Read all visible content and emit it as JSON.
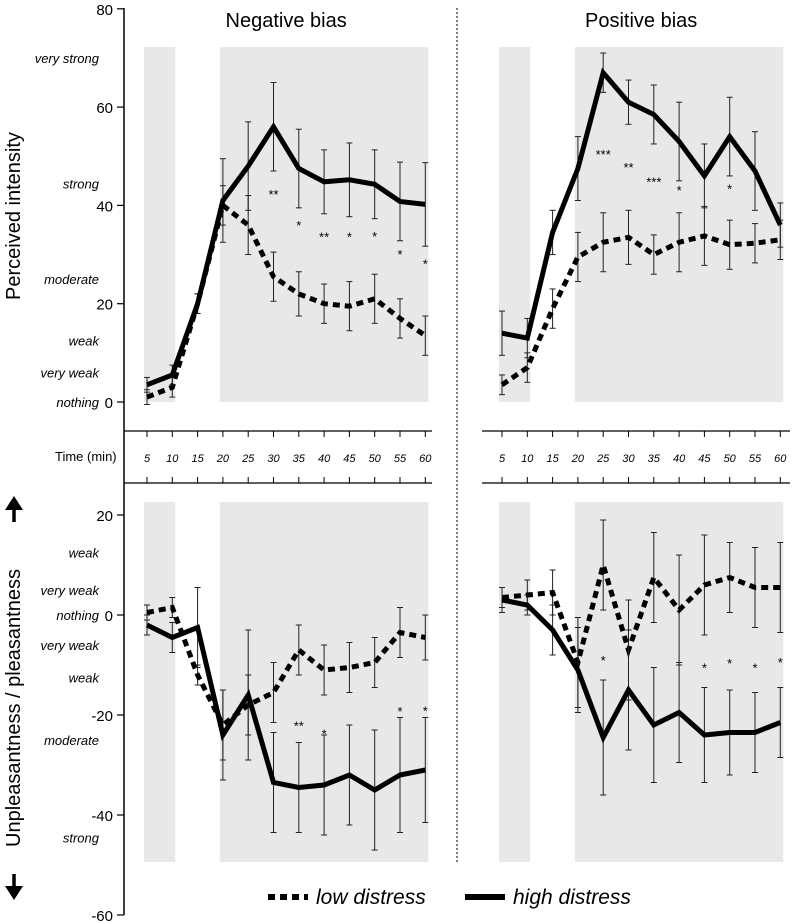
{
  "time_axis_label": "Time (min)",
  "time_ticks": [
    "5",
    "10",
    "15",
    "20",
    "25",
    "30",
    "35",
    "40",
    "45",
    "50",
    "55",
    "60"
  ],
  "ylabel_top": "Perceived intensity",
  "ylabel_bottom": "Unpleasantness / pleasantness",
  "legend": {
    "low": "low distress",
    "high": "high distress"
  },
  "top_y_ticks": [
    "0",
    "20",
    "40",
    "60",
    "80"
  ],
  "bottom_y_ticks": [
    "20",
    "0",
    "-20",
    "-40",
    "-60"
  ],
  "top_descriptors": [
    {
      "text": "very strong",
      "value": 70
    },
    {
      "text": "strong",
      "value": 44.5
    },
    {
      "text": "moderate",
      "value": 25
    },
    {
      "text": "weak",
      "value": 12.5
    },
    {
      "text": "very weak",
      "value": 6
    },
    {
      "text": "nothing",
      "value": 0
    }
  ],
  "bottom_descriptors": [
    {
      "text": "weak",
      "value": 12.5
    },
    {
      "text": "very weak",
      "value": 5
    },
    {
      "text": "nothing",
      "value": 0
    },
    {
      "text": "very weak",
      "value": -6
    },
    {
      "text": "weak",
      "value": -12.5
    },
    {
      "text": "moderate",
      "value": -25
    },
    {
      "text": "strong",
      "value": -44.5
    }
  ],
  "colors": {
    "line": "#000000",
    "shade": "#e8e8e8",
    "text": "#000000"
  },
  "chart_data": [
    {
      "type": "line",
      "panel": "top-left",
      "title": "Negative bias",
      "xlabel": "Time (min)",
      "ylabel": "Perceived intensity",
      "ylim": [
        0,
        80
      ],
      "x": [
        5,
        10,
        15,
        20,
        25,
        30,
        35,
        40,
        45,
        50,
        55,
        60
      ],
      "shaded_ranges": [
        [
          5,
          10
        ],
        [
          20,
          60
        ]
      ],
      "series": [
        {
          "name": "low distress",
          "style": "dotted",
          "values": [
            1,
            3,
            20,
            40,
            36,
            25.5,
            22,
            20,
            19.5,
            21,
            17,
            13.5
          ],
          "errors": [
            1.5,
            2,
            2,
            4,
            6,
            5,
            4.5,
            4,
            5,
            5,
            4,
            4
          ]
        },
        {
          "name": "high distress",
          "style": "solid",
          "values": [
            3.5,
            5.5,
            20,
            41,
            48,
            56,
            47.5,
            44.8,
            45.2,
            44.3,
            40.8,
            40.2
          ],
          "errors": [
            1.5,
            2,
            2,
            8.5,
            9,
            9,
            8,
            6.5,
            7.5,
            7,
            8,
            8.5
          ]
        }
      ],
      "significance": [
        {
          "x": 30,
          "label": "**"
        },
        {
          "x": 35,
          "label": "*"
        },
        {
          "x": 40,
          "label": "**"
        },
        {
          "x": 45,
          "label": "*"
        },
        {
          "x": 50,
          "label": "*"
        },
        {
          "x": 55,
          "label": "*"
        },
        {
          "x": 60,
          "label": "*"
        }
      ]
    },
    {
      "type": "line",
      "panel": "top-right",
      "title": "Positive bias",
      "xlabel": "Time (min)",
      "ylabel": "Perceived intensity",
      "ylim": [
        0,
        80
      ],
      "x": [
        5,
        10,
        15,
        20,
        25,
        30,
        35,
        40,
        45,
        50,
        55,
        60
      ],
      "shaded_ranges": [
        [
          5,
          10
        ],
        [
          20,
          60
        ]
      ],
      "series": [
        {
          "name": "low distress",
          "style": "dotted",
          "values": [
            3.5,
            7,
            19,
            29.5,
            32.5,
            33.5,
            30,
            32.5,
            33.8,
            32,
            32.3,
            33
          ],
          "errors": [
            2,
            3,
            4,
            5,
            6,
            5.5,
            4,
            6,
            6,
            5,
            4,
            4
          ]
        },
        {
          "name": "high distress",
          "style": "solid",
          "values": [
            14,
            13,
            34.5,
            47.5,
            67,
            61,
            58.5,
            53,
            46,
            54,
            47,
            36
          ],
          "errors": [
            4.5,
            4,
            4.5,
            6.5,
            4,
            4.5,
            6,
            8,
            6.5,
            8,
            8,
            4.5
          ]
        }
      ],
      "significance": [
        {
          "x": 25,
          "label": "***"
        },
        {
          "x": 30,
          "label": "**"
        },
        {
          "x": 35,
          "label": "***"
        },
        {
          "x": 40,
          "label": "*"
        },
        {
          "x": 50,
          "label": "*"
        }
      ]
    },
    {
      "type": "line",
      "panel": "bottom-left",
      "title": "",
      "xlabel": "Time (min)",
      "ylabel": "Unpleasantness / pleasantness",
      "ylim": [
        -60,
        25
      ],
      "x": [
        5,
        10,
        15,
        20,
        25,
        30,
        35,
        40,
        45,
        50,
        55,
        60
      ],
      "shaded_ranges": [
        [
          5,
          10
        ],
        [
          20,
          60
        ]
      ],
      "series": [
        {
          "name": "low distress",
          "style": "dotted",
          "values": [
            0.5,
            1.5,
            -12,
            -22,
            -18,
            -15.5,
            -7,
            -11,
            -10.5,
            -9.5,
            -3.5,
            -4.5
          ],
          "errors": [
            1.5,
            2,
            2,
            7,
            6,
            6,
            5,
            5,
            5,
            5,
            5,
            4.5
          ]
        },
        {
          "name": "high distress",
          "style": "solid",
          "values": [
            -2,
            -4.5,
            -2.5,
            -24,
            -16,
            -33.5,
            -34.5,
            -34,
            -32,
            -35,
            -32,
            -31
          ],
          "errors": [
            2,
            3,
            8,
            9,
            13,
            10,
            9,
            10,
            10,
            12,
            11.5,
            10.5
          ]
        }
      ],
      "significance": [
        {
          "x": 35,
          "label": "**"
        },
        {
          "x": 40,
          "label": "*"
        },
        {
          "x": 55,
          "label": "*"
        },
        {
          "x": 60,
          "label": "*"
        }
      ]
    },
    {
      "type": "line",
      "panel": "bottom-right",
      "title": "",
      "xlabel": "Time (min)",
      "ylabel": "Unpleasantness / pleasantness",
      "ylim": [
        -60,
        25
      ],
      "x": [
        5,
        10,
        15,
        20,
        25,
        30,
        35,
        40,
        45,
        50,
        55,
        60
      ],
      "shaded_ranges": [
        [
          5,
          10
        ],
        [
          20,
          60
        ]
      ],
      "series": [
        {
          "name": "low distress",
          "style": "dotted",
          "values": [
            3.5,
            4,
            4.5,
            -9.5,
            10,
            -7,
            7.5,
            1,
            6,
            7.5,
            5.5,
            5.5
          ],
          "errors": [
            2,
            3,
            4.5,
            9,
            9,
            10,
            9,
            11,
            10,
            7,
            8,
            9
          ]
        },
        {
          "name": "high distress",
          "style": "solid",
          "values": [
            3,
            2,
            -3,
            -11,
            -24.5,
            -15,
            -22,
            -19.5,
            -24,
            -23.5,
            -23.5,
            -21.5
          ],
          "errors": [
            2.5,
            2,
            5,
            8.5,
            11.5,
            12,
            11.5,
            10,
            9.5,
            8.5,
            8,
            7
          ]
        }
      ],
      "significance": [
        {
          "x": 25,
          "label": "*"
        },
        {
          "x": 45,
          "label": "*"
        },
        {
          "x": 50,
          "label": "*"
        },
        {
          "x": 55,
          "label": "*"
        },
        {
          "x": 60,
          "label": "*"
        }
      ]
    }
  ]
}
